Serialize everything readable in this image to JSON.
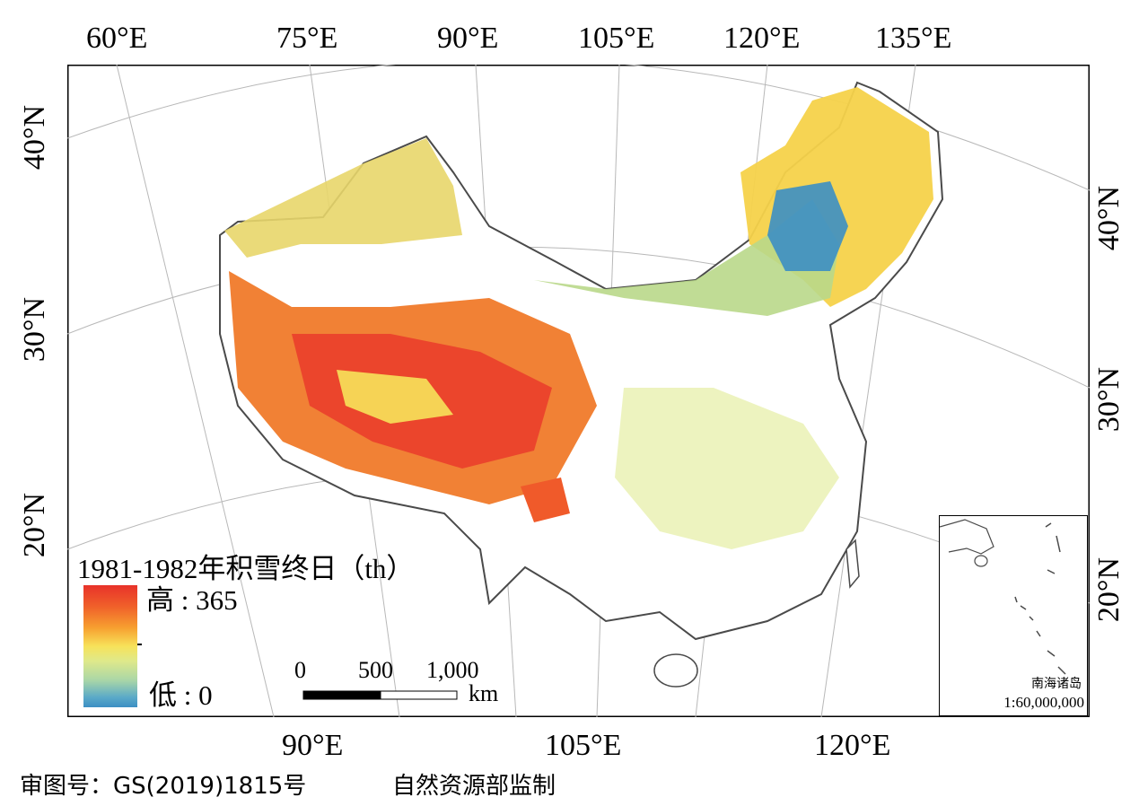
{
  "map": {
    "top_lon_labels": [
      "60°E",
      "75°E",
      "90°E",
      "105°E",
      "120°E",
      "135°E"
    ],
    "bottom_lon_labels": [
      "90°E",
      "105°E",
      "120°E"
    ],
    "left_lat_labels": [
      "40°N",
      "30°N",
      "20°N"
    ],
    "right_lat_labels": [
      "40°N",
      "30°N",
      "20°N"
    ]
  },
  "legend": {
    "title": "1981-1982年积雪终日（th）",
    "high_label": "高 : 365",
    "low_label": "低 : 0",
    "colors": [
      "#e8322a",
      "#f7a030",
      "#f7e25a",
      "#dfe98a",
      "#5aa9c8"
    ]
  },
  "scale_bar": {
    "ticks": [
      "0",
      "500",
      "1,000"
    ],
    "unit": "km"
  },
  "inset": {
    "title": "南海诸岛",
    "scale": "1:60,000,000"
  },
  "footer": {
    "approval": "审图号：GS(2019)1815号",
    "publisher": "自然资源部监制"
  },
  "colors": {
    "no_snow": "#ffffff",
    "boundary": "#4a4a4a",
    "graticule": "#b8b8b8"
  }
}
